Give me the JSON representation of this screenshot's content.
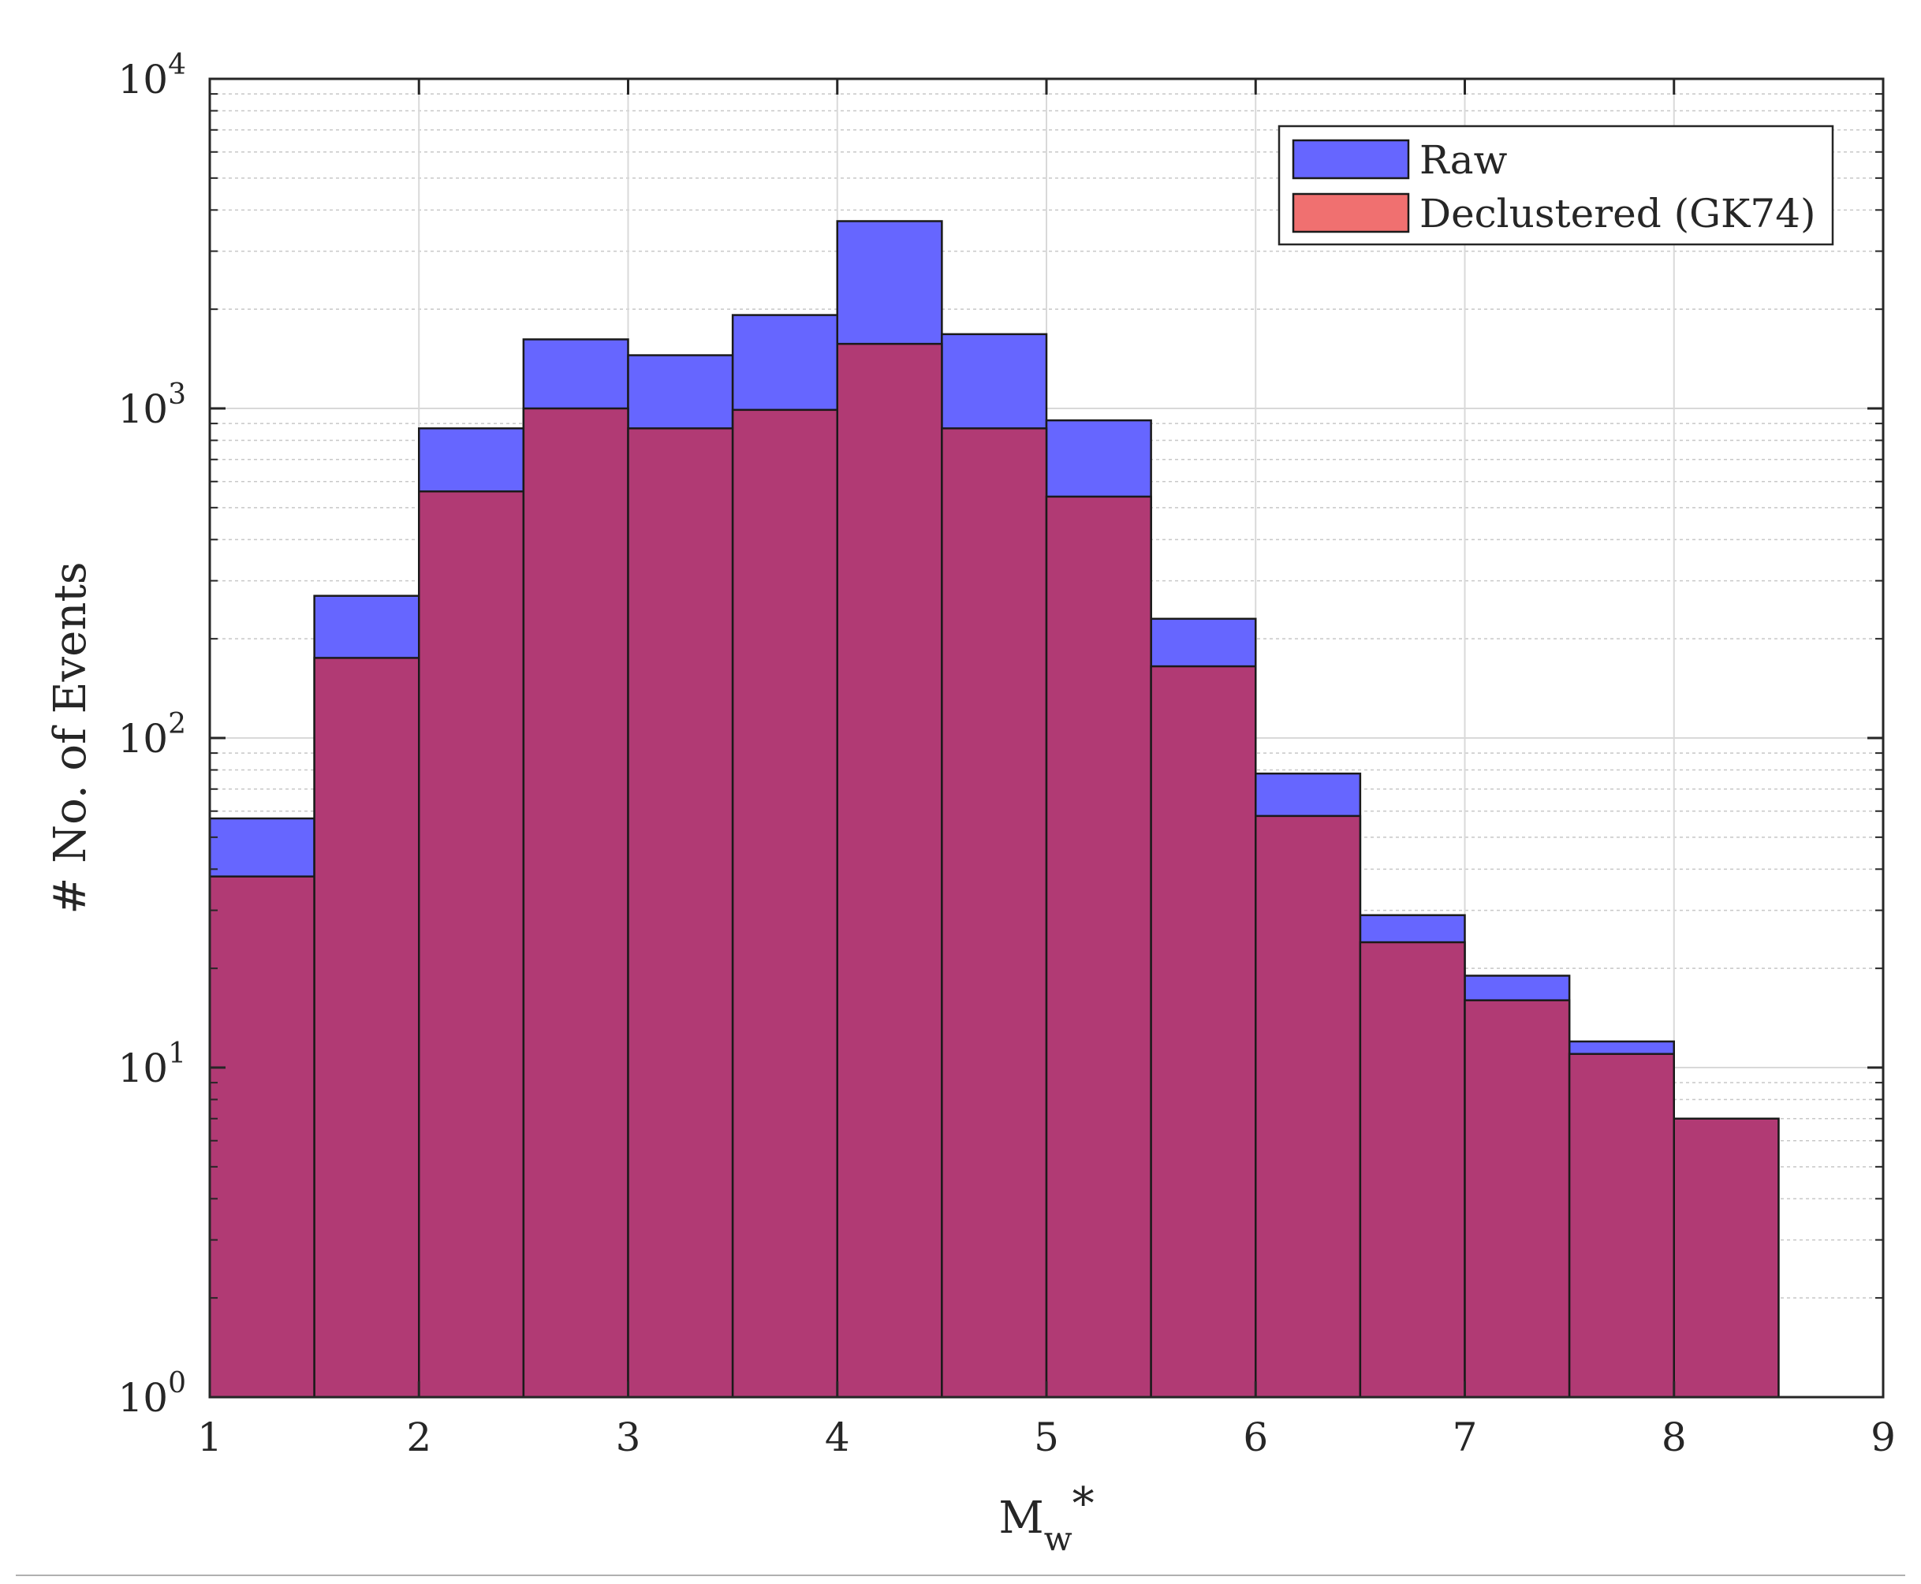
{
  "chart_data": {
    "type": "bar",
    "xlabel": "M",
    "xlabel_sub": "w",
    "xlabel_suffix": "*",
    "ylabel": "# No. of Events",
    "xlim": [
      1,
      9
    ],
    "ylim": [
      1,
      10000
    ],
    "yscale": "log",
    "grid": true,
    "legend_position": "top-right",
    "x_ticks": [
      "1",
      "2",
      "3",
      "4",
      "5",
      "6",
      "7",
      "8",
      "9"
    ],
    "y_ticks": [
      {
        "base": "10",
        "exp": "0"
      },
      {
        "base": "10",
        "exp": "1"
      },
      {
        "base": "10",
        "exp": "2"
      },
      {
        "base": "10",
        "exp": "3"
      },
      {
        "base": "10",
        "exp": "4"
      }
    ],
    "bin_edges": [
      1,
      1.5,
      2,
      2.5,
      3,
      3.5,
      4,
      4.5,
      5,
      5.5,
      6,
      6.5,
      7,
      7.5,
      8,
      8.5
    ],
    "series": [
      {
        "name": "Raw",
        "color": "#6666ff",
        "values": [
          57,
          270,
          870,
          1620,
          1450,
          1920,
          3700,
          1680,
          920,
          230,
          78,
          29,
          19,
          12,
          7
        ]
      },
      {
        "name": "Declustered (GK74)",
        "color": "#f07070",
        "values": [
          38,
          175,
          560,
          1000,
          870,
          990,
          1570,
          870,
          540,
          165,
          58,
          24,
          16,
          11,
          7
        ]
      }
    ],
    "overlap_color": "#b13a74"
  }
}
